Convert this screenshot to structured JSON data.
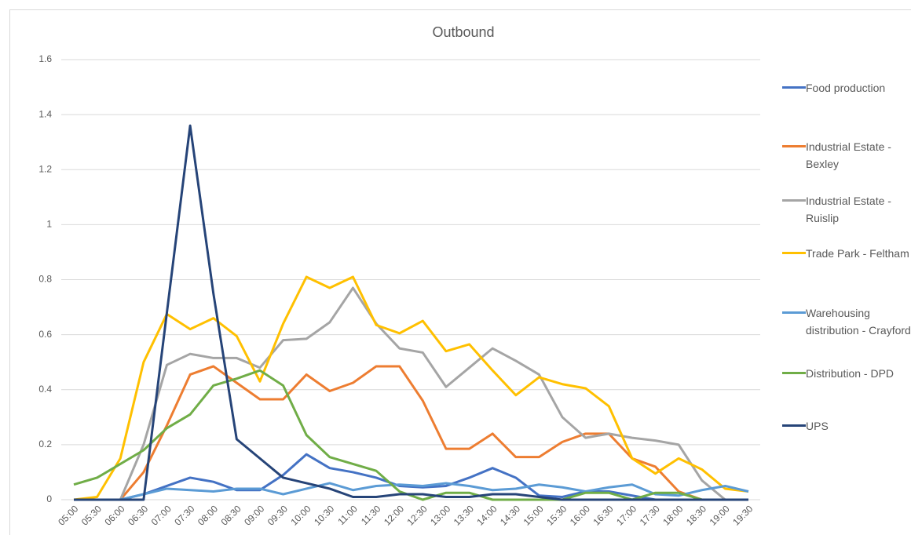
{
  "chart_data": {
    "type": "line",
    "title": "Outbound",
    "categories": [
      "05:00",
      "05:30",
      "06:00",
      "06:30",
      "07:00",
      "07:30",
      "08:00",
      "08:30",
      "09:00",
      "09:30",
      "10:00",
      "10:30",
      "11:00",
      "11:30",
      "12:00",
      "12:30",
      "13:00",
      "13:30",
      "14:00",
      "14:30",
      "15:00",
      "15:30",
      "16:00",
      "16:30",
      "17:00",
      "17:30",
      "18:00",
      "18:30",
      "19:00",
      "19:30"
    ],
    "series": [
      {
        "name": "Food production",
        "color": "#4472c4",
        "values": [
          0,
          0,
          0,
          0.02,
          0.05,
          0.08,
          0.065,
          0.035,
          0.035,
          0.09,
          0.165,
          0.115,
          0.1,
          0.08,
          0.05,
          0.045,
          0.05,
          0.08,
          0.115,
          0.08,
          0.015,
          0.01,
          0.03,
          0.03,
          0.015,
          0,
          0,
          0,
          0,
          0
        ]
      },
      {
        "name": "Industrial Estate - Bexley",
        "color": "#ed7d31",
        "values": [
          0,
          0,
          0,
          0.1,
          0.27,
          0.455,
          0.485,
          0.425,
          0.365,
          0.365,
          0.455,
          0.395,
          0.425,
          0.485,
          0.485,
          0.36,
          0.185,
          0.185,
          0.24,
          0.155,
          0.155,
          0.21,
          0.24,
          0.24,
          0.15,
          0.12,
          0.03,
          0,
          0,
          0
        ]
      },
      {
        "name": "Industrial Estate - Ruislip",
        "color": "#a5a5a5",
        "values": [
          0,
          0,
          0,
          0.2,
          0.49,
          0.53,
          0.515,
          0.515,
          0.48,
          0.58,
          0.585,
          0.645,
          0.77,
          0.64,
          0.55,
          0.535,
          0.41,
          0.48,
          0.55,
          0.505,
          0.455,
          0.3,
          0.225,
          0.24,
          0.225,
          0.215,
          0.2,
          0.07,
          0,
          0
        ]
      },
      {
        "name": "Trade Park - Feltham",
        "color": "#ffc000",
        "values": [
          0,
          0.01,
          0.15,
          0.5,
          0.675,
          0.62,
          0.66,
          0.595,
          0.43,
          0.64,
          0.81,
          0.77,
          0.81,
          0.635,
          0.605,
          0.65,
          0.54,
          0.565,
          0.47,
          0.38,
          0.445,
          0.42,
          0.405,
          0.34,
          0.15,
          0.095,
          0.15,
          0.11,
          0.04,
          0.03
        ]
      },
      {
        "name": "Warehousing distribution - Crayford",
        "color": "#5b9bd5",
        "values": [
          0,
          0,
          0,
          0.02,
          0.04,
          0.035,
          0.03,
          0.04,
          0.04,
          0.02,
          0.04,
          0.06,
          0.035,
          0.05,
          0.055,
          0.05,
          0.06,
          0.05,
          0.035,
          0.04,
          0.055,
          0.045,
          0.03,
          0.045,
          0.055,
          0.02,
          0.015,
          0.035,
          0.05,
          0.03
        ]
      },
      {
        "name": "Distribution - DPD",
        "color": "#70ad47",
        "values": [
          0.055,
          0.08,
          0.13,
          0.18,
          0.26,
          0.31,
          0.415,
          0.44,
          0.47,
          0.415,
          0.235,
          0.155,
          0.13,
          0.105,
          0.03,
          0,
          0.025,
          0.025,
          0,
          0,
          0,
          0,
          0.025,
          0.025,
          0,
          0.025,
          0.025,
          0,
          0,
          0
        ]
      },
      {
        "name": "UPS",
        "color": "#264478",
        "values": [
          0,
          0,
          0,
          0,
          0.68,
          1.36,
          0.75,
          0.22,
          0.15,
          0.08,
          0.06,
          0.04,
          0.01,
          0.01,
          0.02,
          0.02,
          0.01,
          0.01,
          0.02,
          0.02,
          0.01,
          0,
          0,
          0,
          0,
          0,
          0,
          0,
          0,
          0
        ]
      }
    ],
    "ylim": [
      0,
      1.6
    ],
    "yticks": [
      0,
      0.2,
      0.4,
      0.6,
      0.8,
      1,
      1.2,
      1.4,
      1.6
    ],
    "grid": true,
    "legend": "right"
  }
}
